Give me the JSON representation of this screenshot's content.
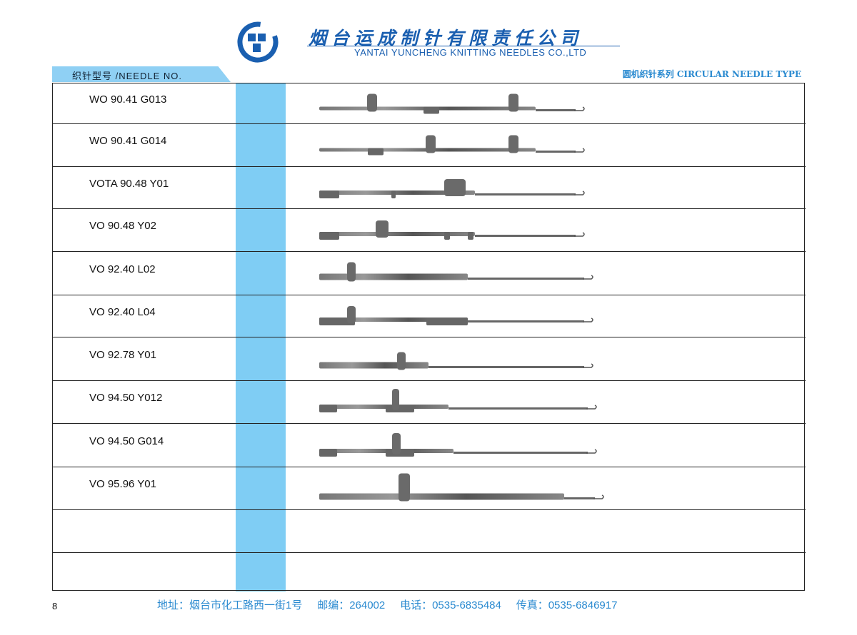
{
  "header": {
    "company_cn": "烟台运成制针有限责任公司",
    "company_en": "YANTAI YUNCHENG KNITTING NEEDLES CO.,LTD",
    "logo_icon": "yuncheng-logo",
    "brand_color": "#1a5fb0",
    "accent_color": "#7fcdf4"
  },
  "tab_label": "织针型号 /NEEDLE NO.",
  "series_label": "圆机织针系列 CIRCULAR NEEDLE TYPE",
  "needles": [
    {
      "model": "WO 90.41 G013"
    },
    {
      "model": "WO 90.41 G014"
    },
    {
      "model": "VOTA 90.48 Y01"
    },
    {
      "model": "VO 90.48 Y02"
    },
    {
      "model": "VO 92.40 L02"
    },
    {
      "model": "VO 92.40 L04"
    },
    {
      "model": "VO 92.78 Y01"
    },
    {
      "model": "VO 94.50 Y012"
    },
    {
      "model": "VO 94.50 G014"
    },
    {
      "model": "VO 95.96 Y01"
    },
    {
      "model": ""
    },
    {
      "model": ""
    }
  ],
  "footer": {
    "address": "地址：烟台市化工路西一街1号",
    "postcode": "邮编：264002",
    "phone": "电话：0535-6835484",
    "fax": "传真：0535-6846917"
  },
  "page_number": "8"
}
